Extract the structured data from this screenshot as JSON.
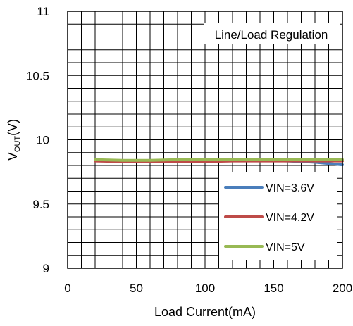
{
  "chart_data": {
    "type": "line",
    "title": "",
    "annotation": "Line/Load Regulation",
    "xlabel": "Load Current(mA)",
    "ylabel": {
      "main": "V",
      "sub": "OUT",
      "suffix": "(V)"
    },
    "xlim": [
      0,
      200
    ],
    "ylim": [
      9,
      11
    ],
    "x_ticks": [
      {
        "value": 0,
        "label": "0"
      },
      {
        "value": 50,
        "label": "50"
      },
      {
        "value": 100,
        "label": "100"
      },
      {
        "value": 150,
        "label": "150"
      },
      {
        "value": 200,
        "label": "200"
      }
    ],
    "y_ticks": [
      {
        "value": 9,
        "label": "9"
      },
      {
        "value": 9.5,
        "label": "9.5"
      },
      {
        "value": 10,
        "label": "10"
      },
      {
        "value": 10.5,
        "label": "10.5"
      },
      {
        "value": 11,
        "label": "11"
      }
    ],
    "grid": {
      "x_step": 10,
      "y_step": 0.1,
      "on": true
    },
    "legend_position": "bottom-right",
    "series": [
      {
        "name": "VIN=3.6V",
        "color": "#4a7ebb",
        "x": [
          20,
          40,
          60,
          80,
          100,
          120,
          140,
          160,
          180,
          200
        ],
        "y": [
          9.84,
          9.835,
          9.835,
          9.835,
          9.84,
          9.84,
          9.84,
          9.835,
          9.825,
          9.805
        ]
      },
      {
        "name": "VIN=4.2V",
        "color": "#be4b48",
        "x": [
          20,
          40,
          60,
          80,
          100,
          120,
          140,
          160,
          180,
          200
        ],
        "y": [
          9.835,
          9.83,
          9.83,
          9.83,
          9.83,
          9.835,
          9.835,
          9.835,
          9.835,
          9.835
        ]
      },
      {
        "name": "VIN=5V",
        "color": "#98b954",
        "x": [
          20,
          40,
          60,
          80,
          100,
          120,
          140,
          160,
          180,
          200
        ],
        "y": [
          9.845,
          9.84,
          9.84,
          9.845,
          9.845,
          9.845,
          9.845,
          9.845,
          9.845,
          9.845
        ]
      }
    ]
  }
}
